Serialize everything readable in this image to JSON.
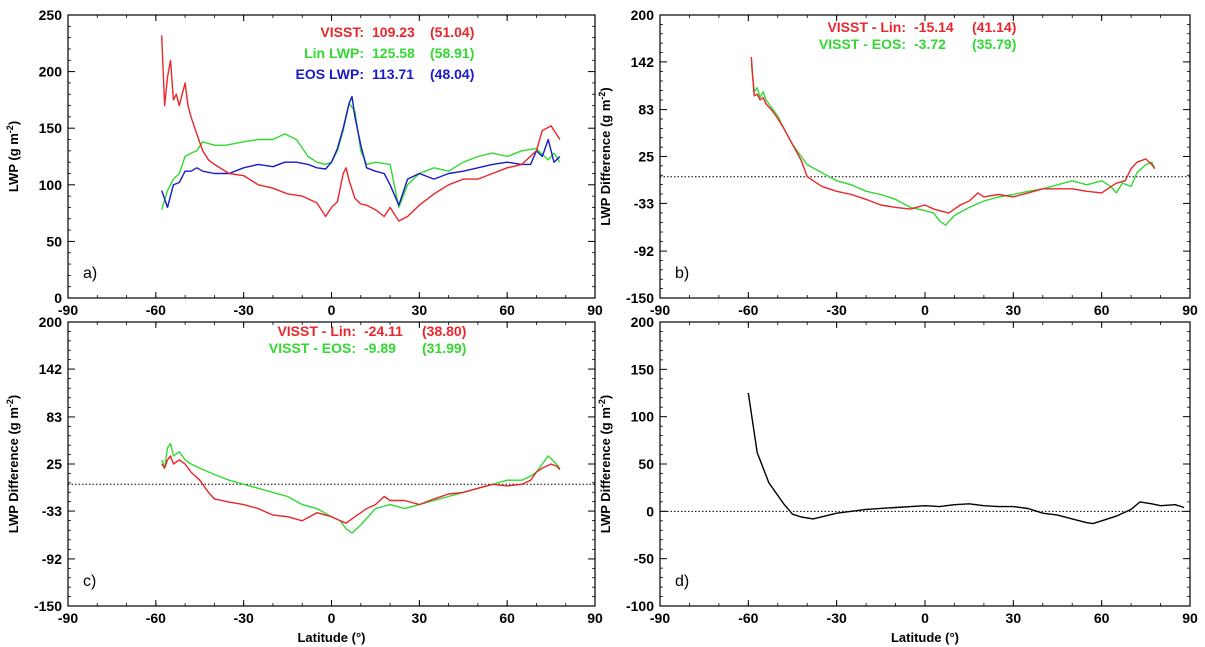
{
  "chart_data": [
    {
      "type": "line",
      "panel_label": "a)",
      "ylabel": "LWP (g m",
      "ylabel_sup": "-2",
      "ylabel_tail": ")",
      "xlabel": "",
      "xlim": [
        -90,
        90
      ],
      "ylim": [
        0,
        250
      ],
      "xticks": [
        "-90",
        "-60",
        "-30",
        "0",
        "30",
        "60",
        "90"
      ],
      "xtick_values": [
        -90,
        -60,
        -30,
        0,
        30,
        60,
        90
      ],
      "yticks": [
        "0",
        "50",
        "100",
        "150",
        "200",
        "250"
      ],
      "ytick_values": [
        0,
        50,
        100,
        150,
        200,
        250
      ],
      "reference_line": null,
      "stats": [
        {
          "label": "VISST:",
          "value": "109.23",
          "sd": "(51.04)",
          "color": "#e8262b"
        },
        {
          "label": "Lin LWP:",
          "value": "125.58",
          "sd": "(58.91)",
          "color": "#33d833"
        },
        {
          "label": "EOS LWP:",
          "value": "113.71",
          "sd": "(48.04)",
          "color": "#1a1ac8"
        }
      ],
      "series": [
        {
          "color": "#33d833",
          "x": [
            -58,
            -56,
            -54,
            -52,
            -50,
            -48,
            -46,
            -44,
            -40,
            -36,
            -30,
            -25,
            -20,
            -16,
            -12,
            -8,
            -5,
            -2,
            0,
            2,
            4,
            6,
            8,
            10,
            12,
            15,
            20,
            23,
            26,
            30,
            35,
            40,
            45,
            50,
            55,
            60,
            65,
            70,
            74,
            76,
            78
          ],
          "y": [
            78,
            95,
            105,
            110,
            125,
            128,
            130,
            138,
            135,
            135,
            138,
            140,
            140,
            145,
            140,
            125,
            120,
            118,
            120,
            130,
            148,
            172,
            165,
            130,
            118,
            120,
            118,
            80,
            100,
            110,
            115,
            112,
            120,
            125,
            128,
            125,
            130,
            132,
            122,
            128,
            120
          ]
        },
        {
          "color": "#1a1ac8",
          "x": [
            -58,
            -56,
            -54,
            -52,
            -50,
            -48,
            -46,
            -44,
            -40,
            -35,
            -30,
            -25,
            -20,
            -16,
            -12,
            -8,
            -5,
            -2,
            0,
            2,
            4,
            6,
            7,
            8,
            10,
            12,
            15,
            18,
            20,
            23,
            26,
            30,
            35,
            40,
            45,
            50,
            55,
            60,
            65,
            68,
            70,
            72,
            74,
            76,
            78
          ],
          "y": [
            95,
            80,
            100,
            102,
            112,
            112,
            115,
            112,
            110,
            110,
            115,
            118,
            116,
            120,
            120,
            118,
            115,
            114,
            120,
            132,
            150,
            172,
            178,
            160,
            135,
            115,
            112,
            110,
            100,
            82,
            105,
            110,
            105,
            110,
            112,
            115,
            118,
            120,
            118,
            118,
            130,
            125,
            140,
            120,
            125
          ]
        },
        {
          "color": "#e8262b",
          "x": [
            -58,
            -57,
            -56,
            -55,
            -54,
            -53,
            -52,
            -50,
            -49,
            -48,
            -46,
            -44,
            -42,
            -40,
            -35,
            -30,
            -25,
            -20,
            -15,
            -10,
            -5,
            -2,
            0,
            2,
            4,
            5,
            6,
            8,
            10,
            12,
            15,
            18,
            20,
            23,
            26,
            30,
            35,
            40,
            45,
            50,
            55,
            60,
            65,
            70,
            72,
            75,
            78
          ],
          "y": [
            232,
            170,
            195,
            210,
            175,
            180,
            170,
            190,
            170,
            160,
            145,
            130,
            122,
            118,
            110,
            108,
            100,
            97,
            92,
            90,
            84,
            72,
            80,
            85,
            110,
            115,
            104,
            88,
            83,
            82,
            78,
            72,
            80,
            68,
            72,
            82,
            92,
            100,
            105,
            105,
            110,
            115,
            118,
            130,
            148,
            152,
            140
          ]
        }
      ]
    },
    {
      "type": "line",
      "panel_label": "b)",
      "ylabel": "LWP Difference (g m",
      "ylabel_sup": "-2",
      "ylabel_tail": ")",
      "xlabel": "",
      "xlim": [
        -90,
        90
      ],
      "ylim": [
        -150,
        200
      ],
      "xticks": [
        "-90",
        "-60",
        "-30",
        "0",
        "30",
        "60",
        "90"
      ],
      "xtick_values": [
        -90,
        -60,
        -30,
        0,
        30,
        60,
        90
      ],
      "yticks": [
        "-150",
        "-92",
        "-33",
        "25",
        "83",
        "142",
        "200"
      ],
      "ytick_values": [
        -150,
        -92,
        -33,
        25,
        83,
        142,
        200
      ],
      "reference_line": 0,
      "stats": [
        {
          "label": "VISST - Lin:",
          "value": "-15.14",
          "sd": "(41.14)",
          "color": "#e8262b"
        },
        {
          "label": "VISST - EOS:",
          "value": "-3.72",
          "sd": "(35.79)",
          "color": "#33d833"
        }
      ],
      "series": [
        {
          "color": "#33d833",
          "x": [
            -59,
            -58,
            -57,
            -56,
            -55,
            -54,
            -52,
            -50,
            -48,
            -45,
            -40,
            -35,
            -30,
            -25,
            -20,
            -15,
            -10,
            -5,
            0,
            3,
            5,
            7,
            10,
            15,
            20,
            25,
            30,
            35,
            40,
            45,
            50,
            55,
            60,
            63,
            65,
            67,
            70,
            72,
            75,
            77,
            78
          ],
          "y": [
            140,
            105,
            110,
            98,
            105,
            95,
            85,
            75,
            60,
            40,
            15,
            5,
            -5,
            -10,
            -18,
            -22,
            -28,
            -38,
            -42,
            -45,
            -55,
            -60,
            -48,
            -38,
            -30,
            -25,
            -22,
            -18,
            -15,
            -10,
            -5,
            -10,
            -5,
            -12,
            -20,
            -8,
            -12,
            5,
            15,
            18,
            10
          ]
        },
        {
          "color": "#e8262b",
          "x": [
            -59,
            -58,
            -57,
            -56,
            -55,
            -54,
            -52,
            -50,
            -48,
            -45,
            -42,
            -40,
            -35,
            -30,
            -25,
            -20,
            -15,
            -10,
            -5,
            0,
            3,
            5,
            8,
            10,
            12,
            15,
            18,
            20,
            25,
            30,
            35,
            40,
            45,
            50,
            55,
            60,
            62,
            65,
            68,
            70,
            72,
            75,
            77,
            78
          ],
          "y": [
            148,
            100,
            102,
            95,
            98,
            90,
            82,
            72,
            60,
            40,
            20,
            0,
            -12,
            -18,
            -22,
            -28,
            -35,
            -38,
            -40,
            -35,
            -40,
            -42,
            -45,
            -40,
            -35,
            -30,
            -20,
            -25,
            -22,
            -25,
            -20,
            -15,
            -15,
            -15,
            -18,
            -20,
            -15,
            -8,
            -5,
            10,
            18,
            22,
            15,
            10
          ]
        }
      ]
    },
    {
      "type": "line",
      "panel_label": "c)",
      "ylabel": "LWP Difference (g m",
      "ylabel_sup": "-2",
      "ylabel_tail": ")",
      "xlabel": "Latitude (°)",
      "xlim": [
        -90,
        90
      ],
      "ylim": [
        -150,
        200
      ],
      "xticks": [
        "-90",
        "-60",
        "-30",
        "0",
        "30",
        "60",
        "90"
      ],
      "xtick_values": [
        -90,
        -60,
        -30,
        0,
        30,
        60,
        90
      ],
      "yticks": [
        "-150",
        "-92",
        "-33",
        "25",
        "83",
        "142",
        "200"
      ],
      "ytick_values": [
        -150,
        -92,
        -33,
        25,
        83,
        142,
        200
      ],
      "reference_line": 0,
      "stats": [
        {
          "label": "VISST - Lin:",
          "value": "-24.11",
          "sd": "(38.80)",
          "color": "#e8262b"
        },
        {
          "label": "VISST - EOS:",
          "value": "-9.89",
          "sd": "(31.99)",
          "color": "#33d833"
        }
      ],
      "series": [
        {
          "color": "#33d833",
          "x": [
            -58,
            -57,
            -56,
            -55,
            -54,
            -52,
            -50,
            -48,
            -45,
            -40,
            -35,
            -30,
            -25,
            -20,
            -15,
            -10,
            -5,
            0,
            3,
            5,
            7,
            10,
            15,
            20,
            25,
            30,
            35,
            40,
            45,
            50,
            55,
            60,
            65,
            68,
            70,
            72,
            74,
            76,
            78
          ],
          "y": [
            30,
            20,
            45,
            50,
            35,
            40,
            30,
            25,
            20,
            12,
            5,
            0,
            -5,
            -10,
            -15,
            -25,
            -30,
            -40,
            -45,
            -55,
            -60,
            -50,
            -30,
            -25,
            -30,
            -25,
            -20,
            -15,
            -10,
            -5,
            0,
            5,
            5,
            10,
            15,
            25,
            35,
            28,
            20
          ]
        },
        {
          "color": "#e8262b",
          "x": [
            -58,
            -57,
            -56,
            -55,
            -54,
            -52,
            -50,
            -48,
            -45,
            -42,
            -40,
            -35,
            -30,
            -25,
            -20,
            -15,
            -10,
            -5,
            0,
            3,
            5,
            8,
            10,
            12,
            15,
            18,
            20,
            25,
            30,
            35,
            40,
            45,
            50,
            55,
            60,
            65,
            68,
            70,
            72,
            75,
            77,
            78
          ],
          "y": [
            25,
            20,
            30,
            35,
            25,
            30,
            25,
            15,
            5,
            -10,
            -18,
            -22,
            -25,
            -30,
            -38,
            -40,
            -45,
            -35,
            -40,
            -45,
            -48,
            -40,
            -35,
            -30,
            -25,
            -15,
            -20,
            -20,
            -25,
            -18,
            -12,
            -10,
            -5,
            0,
            -2,
            0,
            5,
            15,
            20,
            25,
            22,
            18
          ]
        }
      ]
    },
    {
      "type": "line",
      "panel_label": "d)",
      "ylabel": "LWP Difference (g m",
      "ylabel_sup": "-2",
      "ylabel_tail": ")",
      "xlabel": "Latitude (°)",
      "xlim": [
        -90,
        90
      ],
      "ylim": [
        -100,
        200
      ],
      "xticks": [
        "-90",
        "-60",
        "-30",
        "0",
        "30",
        "60",
        "90"
      ],
      "xtick_values": [
        -90,
        -60,
        -30,
        0,
        30,
        60,
        90
      ],
      "yticks": [
        "-100",
        "-50",
        "0",
        "50",
        "100",
        "150",
        "200"
      ],
      "ytick_values": [
        -100,
        -50,
        0,
        50,
        100,
        150,
        200
      ],
      "reference_line": 0,
      "stats": [],
      "series": [
        {
          "color": "#000000",
          "x": [
            -60,
            -57,
            -53,
            -48,
            -45,
            -42,
            -38,
            -30,
            -20,
            -10,
            0,
            5,
            10,
            15,
            20,
            25,
            30,
            35,
            40,
            45,
            50,
            55,
            57,
            60,
            65,
            70,
            73,
            77,
            80,
            85,
            88
          ],
          "y": [
            125,
            62,
            30,
            8,
            -3,
            -6,
            -8,
            -2,
            2,
            4,
            6,
            5,
            7,
            8,
            6,
            5,
            5,
            3,
            -2,
            -4,
            -8,
            -12,
            -13,
            -10,
            -5,
            2,
            10,
            8,
            6,
            7,
            4
          ]
        }
      ]
    }
  ]
}
